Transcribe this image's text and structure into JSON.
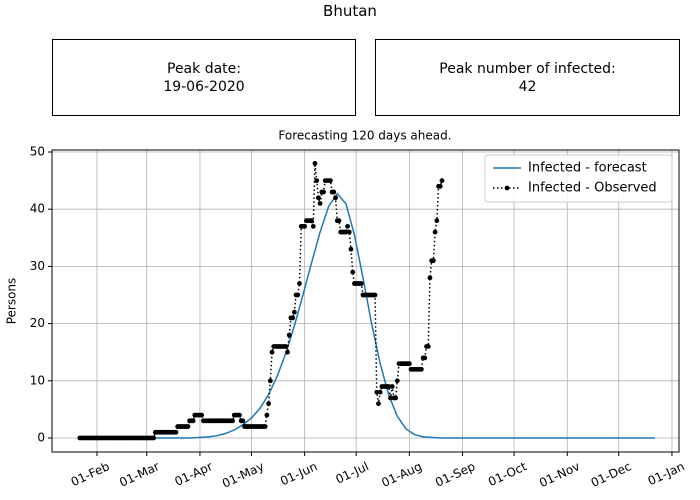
{
  "title": "Bhutan",
  "info_boxes": [
    {
      "label": "Peak date:",
      "value": "19-06-2020"
    },
    {
      "label": "Peak number of infected:",
      "value": 42
    }
  ],
  "chart_data": {
    "type": "line",
    "title": "Forecasting 120 days ahead.",
    "y_label": "Persons",
    "xlim": [
      5.8,
      371.1
    ],
    "ylim": [
      -2.45,
      50.35
    ],
    "grid": true,
    "legend": "upper right",
    "xticks": [
      {
        "value": 32,
        "label": "01-Feb"
      },
      {
        "value": 61,
        "label": "01-Mar"
      },
      {
        "value": 92,
        "label": "01-Apr"
      },
      {
        "value": 122,
        "label": "01-May"
      },
      {
        "value": 153,
        "label": "01-Jun"
      },
      {
        "value": 183,
        "label": "01-Jul"
      },
      {
        "value": 214,
        "label": "01-Aug"
      },
      {
        "value": 245,
        "label": "01-Sep"
      },
      {
        "value": 275,
        "label": "01-Oct"
      },
      {
        "value": 306,
        "label": "01-Nov"
      },
      {
        "value": 336,
        "label": "01-Dec"
      },
      {
        "value": 367,
        "label": "01-Jan"
      }
    ],
    "yticks": [
      0,
      10,
      20,
      30,
      40,
      50
    ],
    "series": [
      {
        "name": "Infected - forecast",
        "color": "#1f77b4",
        "style": "solid",
        "x": [
          22,
          27,
          32,
          37,
          42,
          47,
          52,
          57,
          62,
          67,
          72,
          77,
          82,
          87,
          92,
          97,
          102,
          107,
          112,
          117,
          122,
          127,
          132,
          137,
          142,
          147,
          152,
          157,
          162,
          167,
          172,
          177,
          182,
          187,
          192,
          197,
          202,
          207,
          212,
          217,
          222,
          227,
          232,
          237,
          242,
          247,
          252,
          257,
          262,
          267,
          272,
          277,
          282,
          287,
          292,
          297,
          302,
          307,
          312,
          317,
          322,
          327,
          332,
          337,
          342,
          347,
          352,
          357
        ],
        "values": [
          0,
          0,
          0,
          0,
          0,
          0,
          0,
          0,
          0,
          0,
          0,
          0,
          0,
          0,
          0.1,
          0.2,
          0.4,
          0.8,
          1.4,
          2.3,
          3.5,
          5.2,
          7.6,
          10.8,
          14.8,
          19.6,
          25,
          30.6,
          36,
          40.5,
          42.7,
          41,
          35.5,
          28,
          20,
          13,
          7.5,
          3.8,
          1.6,
          0.6,
          0.2,
          0.1,
          0,
          0,
          0,
          0,
          0,
          0,
          0,
          0,
          0,
          0,
          0,
          0,
          0,
          0,
          0,
          0,
          0,
          0,
          0,
          0,
          0,
          0,
          0,
          0,
          0,
          0
        ]
      },
      {
        "name": "Infected - Observed",
        "color": "#000000",
        "style": "dotted",
        "marker": true,
        "x": [
          22,
          23,
          24,
          25,
          26,
          27,
          28,
          29,
          30,
          31,
          32,
          33,
          34,
          35,
          36,
          37,
          38,
          39,
          40,
          41,
          42,
          43,
          44,
          45,
          46,
          47,
          48,
          49,
          50,
          51,
          52,
          53,
          54,
          55,
          56,
          57,
          58,
          59,
          60,
          61,
          62,
          63,
          64,
          65,
          66,
          67,
          68,
          69,
          70,
          71,
          72,
          73,
          74,
          75,
          76,
          77,
          78,
          79,
          80,
          81,
          82,
          83,
          84,
          85,
          86,
          87,
          88,
          89,
          90,
          91,
          92,
          93,
          94,
          95,
          96,
          97,
          98,
          99,
          100,
          101,
          102,
          103,
          104,
          105,
          106,
          107,
          108,
          109,
          110,
          111,
          112,
          113,
          114,
          115,
          116,
          117,
          118,
          119,
          120,
          121,
          122,
          123,
          124,
          125,
          126,
          127,
          128,
          129,
          130,
          131,
          132,
          133,
          134,
          135,
          136,
          137,
          138,
          139,
          140,
          141,
          142,
          143,
          144,
          145,
          146,
          147,
          148,
          149,
          150,
          151,
          152,
          153,
          154,
          155,
          156,
          157,
          158,
          159,
          160,
          161,
          162,
          163,
          164,
          165,
          166,
          167,
          168,
          169,
          170,
          171,
          172,
          173,
          174,
          175,
          176,
          177,
          178,
          179,
          180,
          181,
          182,
          183,
          184,
          185,
          186,
          187,
          188,
          189,
          190,
          191,
          192,
          193,
          194,
          195,
          196,
          197,
          198,
          199,
          200,
          201,
          202,
          203,
          204,
          205,
          206,
          207,
          208,
          209,
          210,
          211,
          212,
          213,
          214,
          215,
          216,
          217,
          218,
          219,
          220,
          221,
          222,
          223,
          224,
          225,
          226,
          227,
          228,
          229,
          230,
          231,
          232,
          233
        ],
        "values": [
          0,
          0,
          0,
          0,
          0,
          0,
          0,
          0,
          0,
          0,
          0,
          0,
          0,
          0,
          0,
          0,
          0,
          0,
          0,
          0,
          0,
          0,
          0,
          0,
          0,
          0,
          0,
          0,
          0,
          0,
          0,
          0,
          0,
          0,
          0,
          0,
          0,
          0,
          0,
          0,
          0,
          0,
          0,
          0,
          1,
          1,
          1,
          1,
          1,
          1,
          1,
          1,
          1,
          1,
          1,
          1,
          1,
          2,
          2,
          2,
          2,
          2,
          2,
          2,
          3,
          3,
          3,
          4,
          4,
          4,
          4,
          4,
          3,
          3,
          3,
          3,
          3,
          3,
          3,
          3,
          3,
          3,
          3,
          3,
          3,
          3,
          3,
          3,
          3,
          3,
          4,
          4,
          4,
          4,
          3,
          3,
          2,
          2,
          2,
          2,
          2,
          2,
          2,
          2,
          2,
          2,
          2,
          2,
          2,
          4,
          6,
          10,
          15,
          16,
          16,
          16,
          16,
          16,
          16,
          16,
          16,
          15,
          18,
          21,
          21,
          22,
          25,
          25,
          27,
          37,
          37,
          37,
          38,
          38,
          38,
          38,
          37,
          48,
          45,
          42,
          41,
          43,
          43,
          45,
          45,
          45,
          45,
          43,
          43,
          42,
          38,
          38,
          36,
          36,
          36,
          36,
          37,
          36,
          33,
          29,
          27,
          27,
          27,
          27,
          27,
          25,
          25,
          25,
          25,
          25,
          25,
          25,
          25,
          8,
          6,
          8,
          9,
          9,
          9,
          9,
          9,
          7,
          9,
          7,
          7,
          10,
          13,
          13,
          13,
          13,
          13,
          13,
          13,
          12,
          12,
          12,
          12,
          12,
          12,
          12,
          14,
          14,
          16,
          16,
          28,
          31,
          31,
          36,
          38,
          44,
          44,
          45
        ]
      }
    ]
  }
}
